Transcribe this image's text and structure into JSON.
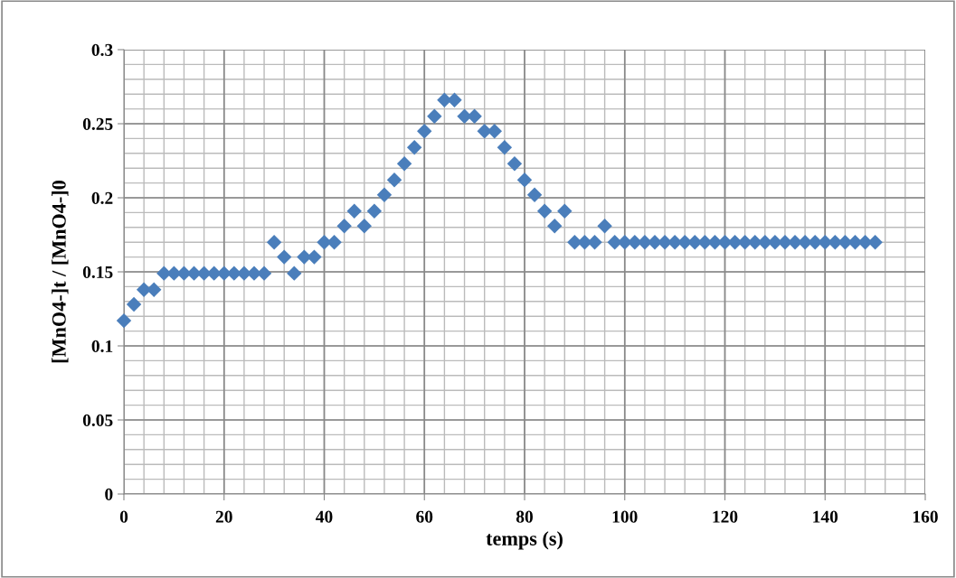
{
  "chart_data": {
    "type": "scatter",
    "xlabel": "temps (s)",
    "ylabel": "[MnO4-]t / [MnO4-]0",
    "x": [
      0,
      2,
      4,
      6,
      8,
      10,
      12,
      14,
      16,
      18,
      20,
      22,
      24,
      26,
      28,
      30,
      32,
      34,
      36,
      38,
      40,
      42,
      44,
      46,
      48,
      50,
      52,
      54,
      56,
      58,
      60,
      62,
      64,
      66,
      68,
      70,
      72,
      74,
      76,
      78,
      80,
      82,
      84,
      86,
      88,
      90,
      92,
      94,
      96,
      98,
      100,
      102,
      104,
      106,
      108,
      110,
      112,
      114,
      116,
      118,
      120,
      122,
      124,
      126,
      128,
      130,
      132,
      134,
      136,
      138,
      140,
      142,
      144,
      146,
      148,
      150
    ],
    "series": [
      {
        "color": "#4a7ebb",
        "values": [
          0.117,
          0.128,
          0.138,
          0.138,
          0.149,
          0.149,
          0.149,
          0.149,
          0.149,
          0.149,
          0.149,
          0.149,
          0.149,
          0.149,
          0.149,
          0.17,
          0.16,
          0.149,
          0.16,
          0.16,
          0.17,
          0.17,
          0.181,
          0.191,
          0.181,
          0.191,
          0.202,
          0.212,
          0.223,
          0.234,
          0.245,
          0.255,
          0.266,
          0.266,
          0.255,
          0.255,
          0.245,
          0.245,
          0.234,
          0.223,
          0.212,
          0.202,
          0.191,
          0.181,
          0.191,
          0.17,
          0.17,
          0.17,
          0.181,
          0.17,
          0.17,
          0.17,
          0.17,
          0.17,
          0.17,
          0.17,
          0.17,
          0.17,
          0.17,
          0.17,
          0.17,
          0.17,
          0.17,
          0.17,
          0.17,
          0.17,
          0.17,
          0.17,
          0.17,
          0.17,
          0.17,
          0.17,
          0.17,
          0.17,
          0.17,
          0.17
        ]
      }
    ],
    "xlim": [
      0,
      160
    ],
    "xticks": [
      0,
      20,
      40,
      60,
      80,
      100,
      120,
      140,
      160
    ],
    "ylim": [
      0,
      0.3
    ],
    "yticks": [
      {
        "value": 0,
        "label": "0"
      },
      {
        "value": 0.05,
        "label": "0.05"
      },
      {
        "value": 0.1,
        "label": "0.1"
      },
      {
        "value": 0.15,
        "label": "0.15"
      },
      {
        "value": 0.2,
        "label": "0.2"
      },
      {
        "value": 0.25,
        "label": "0.25"
      },
      {
        "value": 0.3,
        "label": "0.3"
      }
    ],
    "grid": true,
    "marker": "diamond",
    "legend": false
  }
}
